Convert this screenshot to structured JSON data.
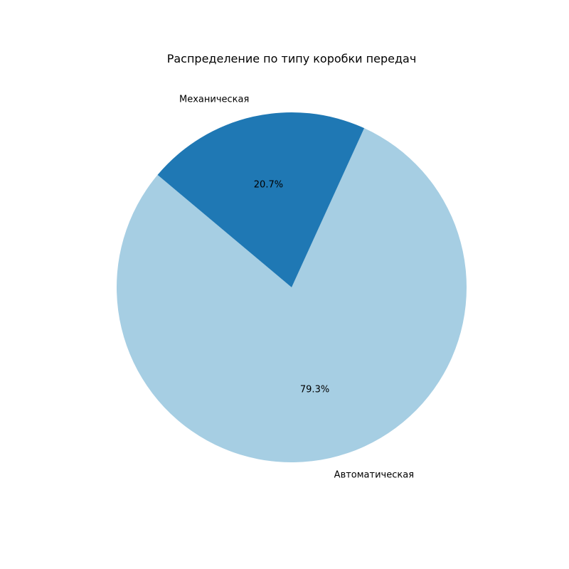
{
  "chart_data": {
    "type": "pie",
    "title": "Распределение по типу коробки передач",
    "slices": [
      {
        "label": "Автоматическая",
        "value": 79.3,
        "pct_label": "79.3%",
        "color": "#a6cee3"
      },
      {
        "label": "Механическая",
        "value": 20.7,
        "pct_label": "20.7%",
        "color": "#1f78b4"
      }
    ],
    "start_angle_deg": 140,
    "direction": "counterclockwise"
  }
}
